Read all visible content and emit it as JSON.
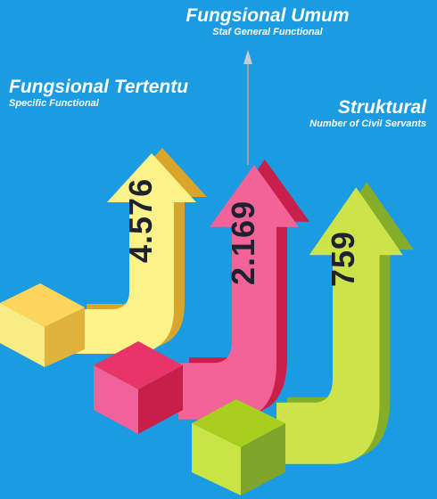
{
  "items": [
    {
      "title": "Fungsional Tertentu",
      "subtitle": "Specific Functional",
      "value": "4.576"
    },
    {
      "title": "Fungsional Umum",
      "subtitle": "Staf General Functional",
      "value": "2.169"
    },
    {
      "title": "Struktural",
      "subtitle": "Number of Civil Servants",
      "value": "759"
    }
  ]
}
